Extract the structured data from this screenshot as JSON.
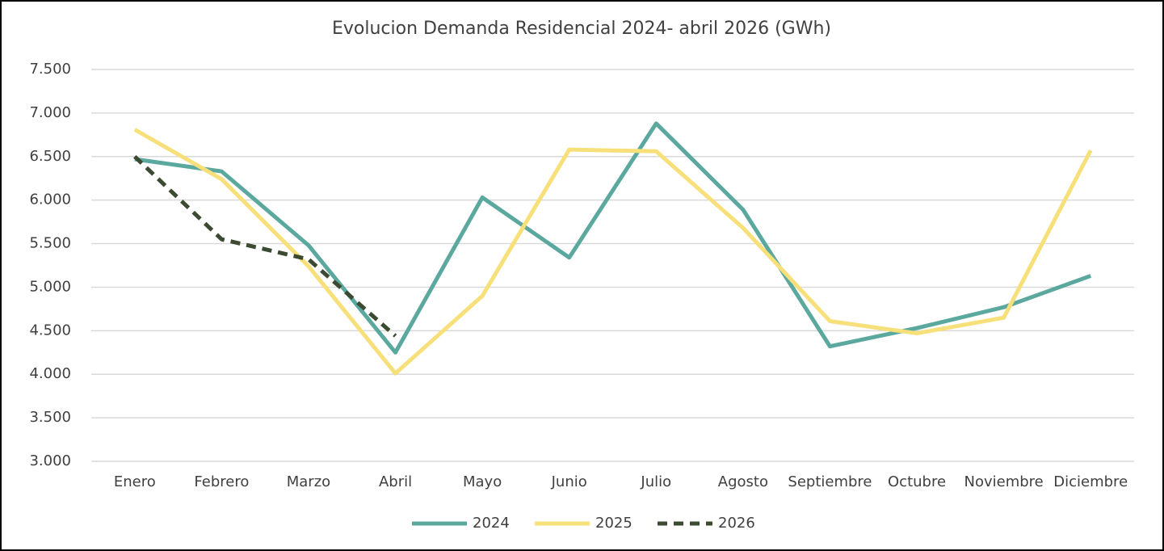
{
  "chart_data": {
    "type": "line",
    "title": "Evolucion Demanda Residencial 2024- abril 2026 (GWh)",
    "categories": [
      "Enero",
      "Febrero",
      "Marzo",
      "Abril",
      "Mayo",
      "Junio",
      "Julio",
      "Agosto",
      "Septiembre",
      "Octubre",
      "Noviembre",
      "Diciembre"
    ],
    "series": [
      {
        "name": "2024",
        "color": "#5ba89e",
        "dashed": false,
        "values": [
          6470,
          6330,
          5480,
          4250,
          6030,
          5340,
          6880,
          5890,
          4320,
          4530,
          4770,
          5130
        ]
      },
      {
        "name": "2025",
        "color": "#f7e07a",
        "dashed": false,
        "values": [
          6810,
          6240,
          5240,
          4010,
          4900,
          6580,
          6560,
          5680,
          4610,
          4470,
          4650,
          6570
        ]
      },
      {
        "name": "2026",
        "color": "#3b4a30",
        "dashed": true,
        "values": [
          6500,
          5550,
          5320,
          4440,
          null,
          null,
          null,
          null,
          null,
          null,
          null,
          null
        ]
      }
    ],
    "ylim": [
      3000,
      7500
    ],
    "yticks": [
      {
        "value": 3000,
        "label": "3.000"
      },
      {
        "value": 3500,
        "label": "3.500"
      },
      {
        "value": 4000,
        "label": "4.000"
      },
      {
        "value": 4500,
        "label": "4.500"
      },
      {
        "value": 5000,
        "label": "5.000"
      },
      {
        "value": 5500,
        "label": "5.500"
      },
      {
        "value": 6000,
        "label": "6.000"
      },
      {
        "value": 6500,
        "label": "6.500"
      },
      {
        "value": 7000,
        "label": "7.000"
      },
      {
        "value": 7500,
        "label": "7.500"
      }
    ],
    "grid": true,
    "legend": "bottom"
  }
}
